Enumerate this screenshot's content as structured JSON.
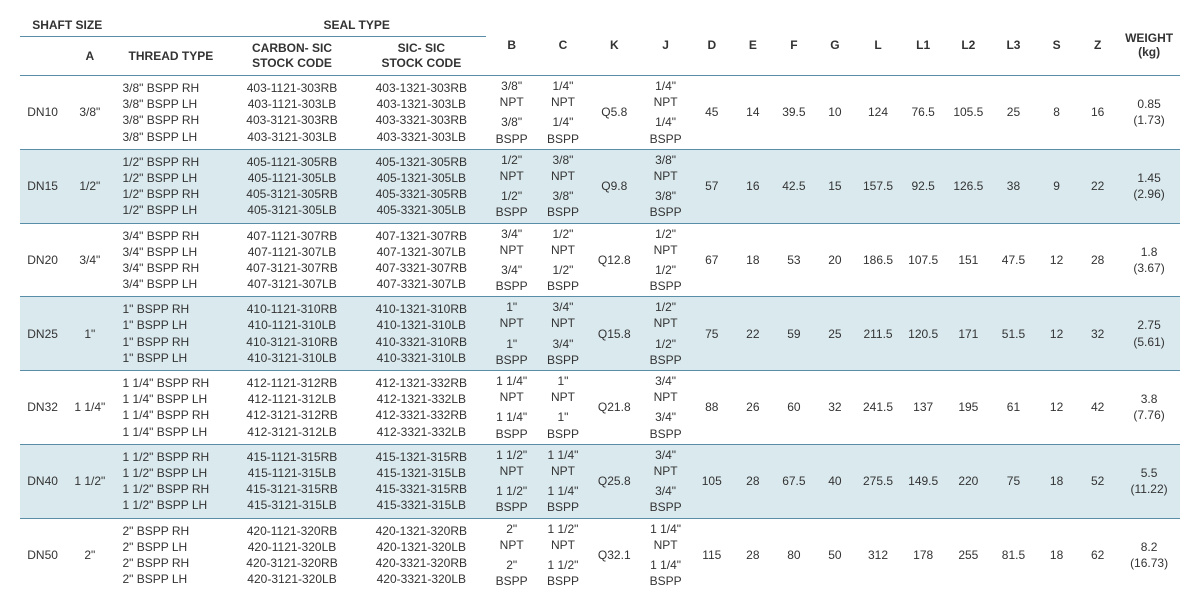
{
  "table": {
    "header_groups": {
      "shaft_size": "SHAFT SIZE",
      "seal_type": "SEAL TYPE"
    },
    "columns": {
      "dn": "",
      "a": "A",
      "thread_type": "THREAD TYPE",
      "carbon_sic": "CARBON- SIC\nSTOCK CODE",
      "sic_sic": "SIC- SIC\nSTOCK CODE",
      "b": "B",
      "c": "C",
      "k": "K",
      "j": "J",
      "d": "D",
      "e": "E",
      "f": "F",
      "g": "G",
      "l": "L",
      "l1": "L1",
      "l2": "L2",
      "l3": "L3",
      "s": "S",
      "z": "Z",
      "weight": "WEIGHT\n(kg)"
    },
    "rows": [
      {
        "dn": "DN10",
        "a": "3/8\"",
        "thread_types": [
          "3/8\" BSPP RH",
          "3/8\" BSPP LH",
          "3/8\" BSPP RH",
          "3/8\" BSPP LH"
        ],
        "carbon": [
          "403-1121-303RB",
          "403-1121-303LB",
          "403-3121-303RB",
          "403-3121-303LB"
        ],
        "sic": [
          "403-1321-303RB",
          "403-1321-303LB",
          "403-3321-303RB",
          "403-3321-303LB"
        ],
        "b1": "3/8\"\nNPT",
        "b2": "3/8\"\nBSPP",
        "c1": "1/4\"\nNPT",
        "c2": "1/4\"\nBSPP",
        "k": "Q5.8",
        "j1": "1/4\"\nNPT",
        "j2": "1/4\"\nBSPP",
        "d": "45",
        "e": "14",
        "f": "39.5",
        "g": "10",
        "l": "124",
        "l1": "76.5",
        "l2": "105.5",
        "l3": "25",
        "s": "8",
        "z": "16",
        "weight": "0.85\n(1.73)"
      },
      {
        "dn": "DN15",
        "a": "1/2\"",
        "thread_types": [
          "1/2\" BSPP RH",
          "1/2\" BSPP LH",
          "1/2\" BSPP RH",
          "1/2\" BSPP LH"
        ],
        "carbon": [
          "405-1121-305RB",
          "405-1121-305LB",
          "405-3121-305RB",
          "405-3121-305LB"
        ],
        "sic": [
          "405-1321-305RB",
          "405-1321-305LB",
          "405-3321-305RB",
          "405-3321-305LB"
        ],
        "b1": "1/2\"\nNPT",
        "b2": "1/2\"\nBSPP",
        "c1": "3/8\"\nNPT",
        "c2": "3/8\"\nBSPP",
        "k": "Q9.8",
        "j1": "3/8\"\nNPT",
        "j2": "3/8\"\nBSPP",
        "d": "57",
        "e": "16",
        "f": "42.5",
        "g": "15",
        "l": "157.5",
        "l1": "92.5",
        "l2": "126.5",
        "l3": "38",
        "s": "9",
        "z": "22",
        "weight": "1.45\n(2.96)"
      },
      {
        "dn": "DN20",
        "a": "3/4\"",
        "thread_types": [
          "3/4\" BSPP RH",
          "3/4\" BSPP LH",
          "3/4\" BSPP RH",
          "3/4\" BSPP LH"
        ],
        "carbon": [
          "407-1121-307RB",
          "407-1121-307LB",
          "407-3121-307RB",
          "407-3121-307LB"
        ],
        "sic": [
          "407-1321-307RB",
          "407-1321-307LB",
          "407-3321-307RB",
          "407-3321-307LB"
        ],
        "b1": "3/4\"\nNPT",
        "b2": "3/4\"\nBSPP",
        "c1": "1/2\"\nNPT",
        "c2": "1/2\"\nBSPP",
        "k": "Q12.8",
        "j1": "1/2\"\nNPT",
        "j2": "1/2\"\nBSPP",
        "d": "67",
        "e": "18",
        "f": "53",
        "g": "20",
        "l": "186.5",
        "l1": "107.5",
        "l2": "151",
        "l3": "47.5",
        "s": "12",
        "z": "28",
        "weight": "1.8\n(3.67)"
      },
      {
        "dn": "DN25",
        "a": "1\"",
        "thread_types": [
          "1\" BSPP RH",
          "1\" BSPP LH",
          "1\" BSPP RH",
          "1\" BSPP LH"
        ],
        "carbon": [
          "410-1121-310RB",
          "410-1121-310LB",
          "410-3121-310RB",
          "410-3121-310LB"
        ],
        "sic": [
          "410-1321-310RB",
          "410-1321-310LB",
          "410-3321-310RB",
          "410-3321-310LB"
        ],
        "b1": "1\"\nNPT",
        "b2": "1\"\nBSPP",
        "c1": "3/4\"\nNPT",
        "c2": "3/4\"\nBSPP",
        "k": "Q15.8",
        "j1": "1/2\"\nNPT",
        "j2": "1/2\"\nBSPP",
        "d": "75",
        "e": "22",
        "f": "59",
        "g": "25",
        "l": "211.5",
        "l1": "120.5",
        "l2": "171",
        "l3": "51.5",
        "s": "12",
        "z": "32",
        "weight": "2.75\n(5.61)"
      },
      {
        "dn": "DN32",
        "a": "1 1/4\"",
        "thread_types": [
          "1 1/4\" BSPP RH",
          "1 1/4\" BSPP LH",
          "1 1/4\" BSPP RH",
          "1 1/4\" BSPP LH"
        ],
        "carbon": [
          "412-1121-312RB",
          "412-1121-312LB",
          "412-3121-312RB",
          "412-3121-312LB"
        ],
        "sic": [
          "412-1321-332RB",
          "412-1321-332LB",
          "412-3321-332RB",
          "412-3321-332LB"
        ],
        "b1": "1 1/4\"\nNPT",
        "b2": "1 1/4\"\nBSPP",
        "c1": "1\"\nNPT",
        "c2": "1\"\nBSPP",
        "k": "Q21.8",
        "j1": "3/4\"\nNPT",
        "j2": "3/4\"\nBSPP",
        "d": "88",
        "e": "26",
        "f": "60",
        "g": "32",
        "l": "241.5",
        "l1": "137",
        "l2": "195",
        "l3": "61",
        "s": "12",
        "z": "42",
        "weight": "3.8\n(7.76)"
      },
      {
        "dn": "DN40",
        "a": "1 1/2\"",
        "thread_types": [
          "1 1/2\" BSPP RH",
          "1 1/2\" BSPP LH",
          "1 1/2\" BSPP RH",
          "1 1/2\" BSPP LH"
        ],
        "carbon": [
          "415-1121-315RB",
          "415-1121-315LB",
          "415-3121-315RB",
          "415-3121-315LB"
        ],
        "sic": [
          "415-1321-315RB",
          "415-1321-315LB",
          "415-3321-315RB",
          "415-3321-315LB"
        ],
        "b1": "1 1/2\"\nNPT",
        "b2": "1 1/2\"\nBSPP",
        "c1": "1 1/4\"\nNPT",
        "c2": "1 1/4\"\nBSPP",
        "k": "Q25.8",
        "j1": "3/4\"\nNPT",
        "j2": "3/4\"\nBSPP",
        "d": "105",
        "e": "28",
        "f": "67.5",
        "g": "40",
        "l": "275.5",
        "l1": "149.5",
        "l2": "220",
        "l3": "75",
        "s": "18",
        "z": "52",
        "weight": "5.5\n(11.22)"
      },
      {
        "dn": "DN50",
        "a": "2\"",
        "thread_types": [
          "2\" BSPP RH",
          "2\" BSPP LH",
          "2\" BSPP RH",
          "2\" BSPP LH"
        ],
        "carbon": [
          "420-1121-320RB",
          "420-1121-320LB",
          "420-3121-320RB",
          "420-3121-320LB"
        ],
        "sic": [
          "420-1321-320RB",
          "420-1321-320LB",
          "420-3321-320RB",
          "420-3321-320LB"
        ],
        "b1": "2\"\nNPT",
        "b2": "2\"\nBSPP",
        "c1": "1 1/2\"\nNPT",
        "c2": "1 1/2\"\nBSPP",
        "k": "Q32.1",
        "j1": "1 1/4\"\nNPT",
        "j2": "1 1/4\"\nBSPP",
        "d": "115",
        "e": "28",
        "f": "80",
        "g": "50",
        "l": "312",
        "l1": "178",
        "l2": "255",
        "l3": "81.5",
        "s": "18",
        "z": "62",
        "weight": "8.2\n(16.73)"
      }
    ],
    "style": {
      "border_color": "#5a8ea8",
      "alt_row_bg": "#dae9ee",
      "font_size_pt": 9,
      "text_color": "#333333"
    }
  }
}
